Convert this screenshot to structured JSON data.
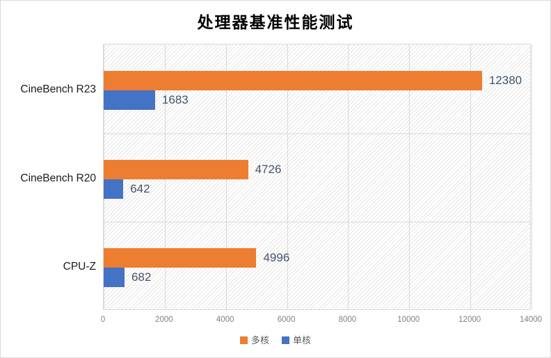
{
  "title": "处理器基准性能测试",
  "chart_data": {
    "type": "bar",
    "orientation": "horizontal",
    "title": "处理器基准性能测试",
    "categories": [
      "CineBench R23",
      "CineBench R20",
      "CPU-Z"
    ],
    "series": [
      {
        "name": "多核",
        "color": "#ED7D31",
        "values": [
          12380,
          4726,
          4996
        ]
      },
      {
        "name": "单核",
        "color": "#4472C4",
        "values": [
          1683,
          642,
          682
        ]
      }
    ],
    "xlim": [
      0,
      14000
    ],
    "xticks": [
      0,
      2000,
      4000,
      6000,
      8000,
      10000,
      12000,
      14000
    ],
    "grid": true,
    "value_labels": true,
    "legend_position": "bottom"
  },
  "colors": {
    "multi_core": "#ED7D31",
    "single_core": "#4472C4",
    "gridline": "#D9D9D9",
    "hatch_line": "#E7E5E4",
    "value_label": "#44546A",
    "tick_label": "#7F7F7F",
    "category_label": "#1A1A1A",
    "legend_label": "#595959",
    "border": "#D9D9D9",
    "title": "#000000"
  }
}
